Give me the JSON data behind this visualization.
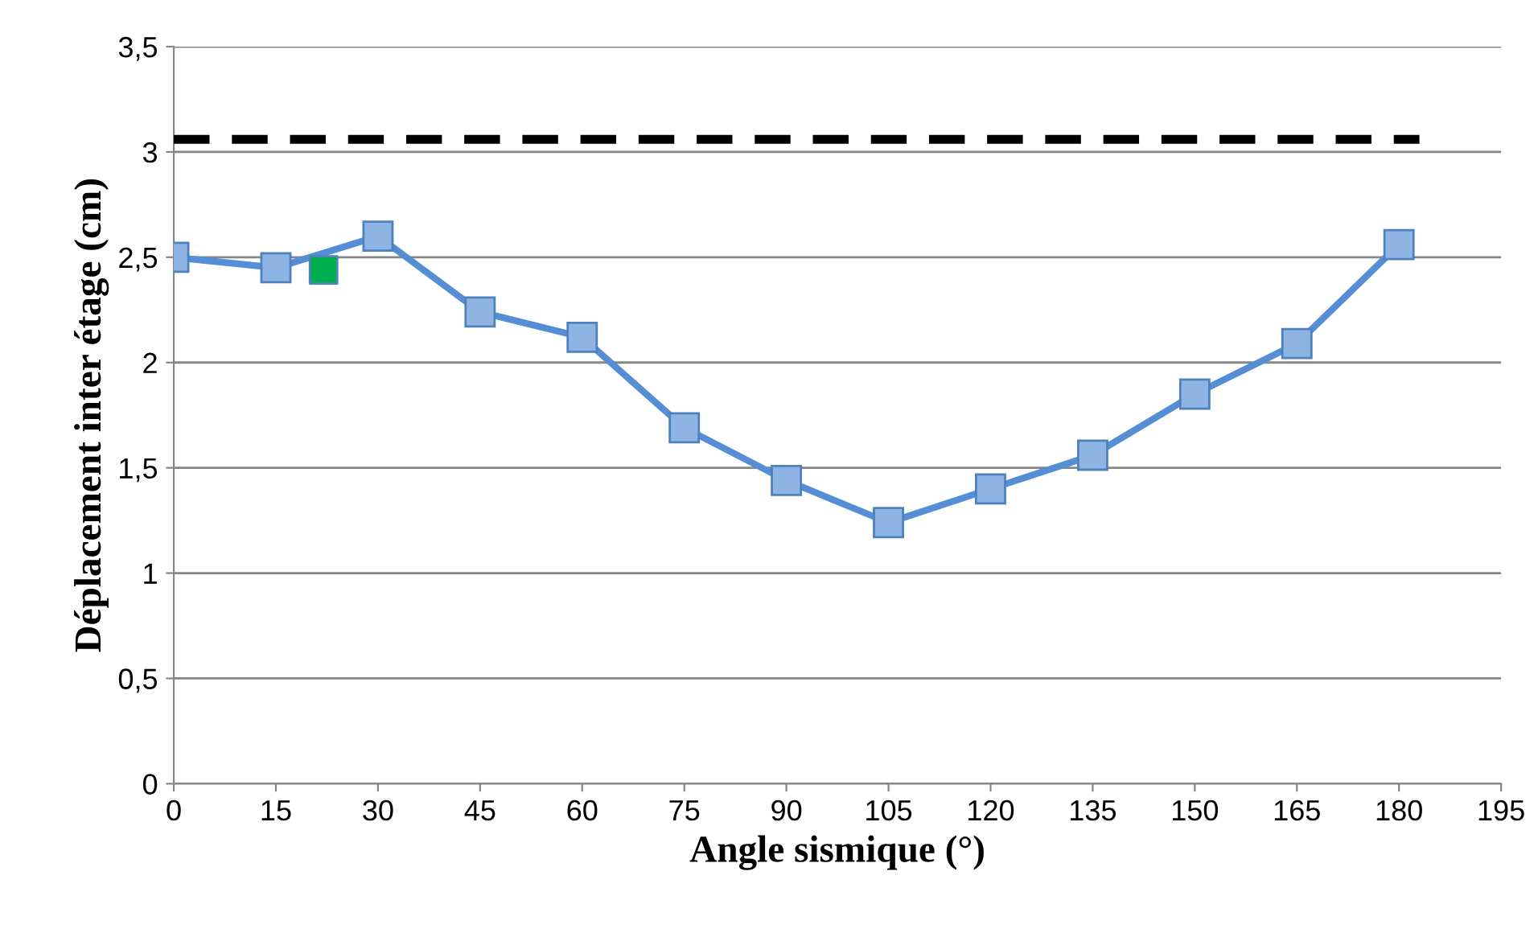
{
  "chart_data": {
    "type": "line",
    "xlabel": "Angle sismique (°)",
    "ylabel": "Déplacement inter étage (cm)",
    "xlim": [
      0,
      195
    ],
    "xticks": [
      0,
      15,
      30,
      45,
      60,
      75,
      90,
      105,
      120,
      135,
      150,
      165,
      180,
      195
    ],
    "ylim": [
      0,
      3.5
    ],
    "yticks": [
      {
        "value": 0,
        "label": "0"
      },
      {
        "value": 0.5,
        "label": "0,5"
      },
      {
        "value": 1,
        "label": "1"
      },
      {
        "value": 1.5,
        "label": "1,5"
      },
      {
        "value": 2,
        "label": "2"
      },
      {
        "value": 2.5,
        "label": "2,5"
      },
      {
        "value": 3,
        "label": "3"
      },
      {
        "value": 3.5,
        "label": "3,5"
      }
    ],
    "grid": "y",
    "marker": "square",
    "series": [
      {
        "color": "#558ed5",
        "x": [
          0,
          15,
          30,
          45,
          60,
          75,
          90,
          105,
          120,
          135,
          150,
          165,
          180
        ],
        "values": [
          2.5,
          2.45,
          2.6,
          2.24,
          2.12,
          1.69,
          1.44,
          1.24,
          1.4,
          1.56,
          1.85,
          2.09,
          2.56
        ]
      },
      {
        "type": "scatter",
        "color": "#00b050",
        "x": [
          22
        ],
        "values": [
          2.44
        ]
      },
      {
        "color": "#000000",
        "line_style": "dashed",
        "marker": "none",
        "x": [
          0,
          183
        ],
        "values": [
          3.06,
          3.06
        ]
      }
    ]
  }
}
